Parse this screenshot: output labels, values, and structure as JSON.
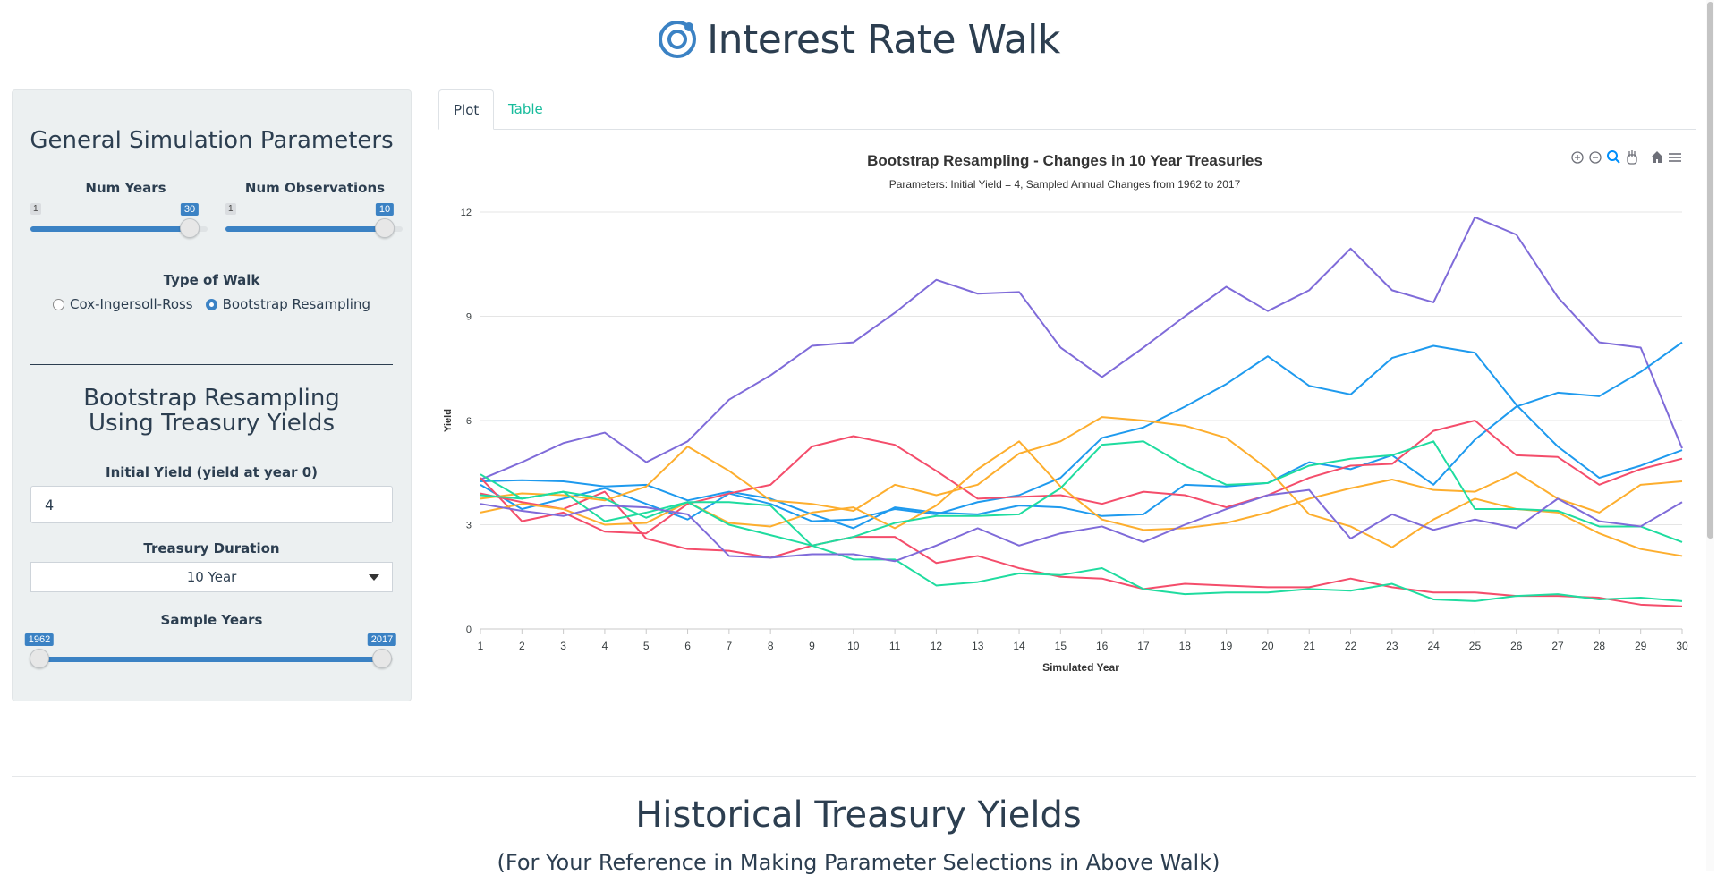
{
  "header": {
    "title": "Interest Rate Walk",
    "logo_icon": "ionic-logo-icon"
  },
  "sidebar": {
    "general_title": "General Simulation Parameters",
    "num_years": {
      "label": "Num Years",
      "min": "1",
      "max": "30",
      "value": "30"
    },
    "num_observations": {
      "label": "Num Observations",
      "min": "1",
      "max": "10",
      "value": "10"
    },
    "walk_type": {
      "label": "Type of Walk",
      "options": [
        "Cox-Ingersoll-Ross",
        "Bootstrap Resampling"
      ],
      "selected": "Bootstrap Resampling"
    },
    "bootstrap_title": "Bootstrap Resampling Using Treasury Yields",
    "initial_yield": {
      "label": "Initial Yield (yield at year 0)",
      "value": "4"
    },
    "treasury_duration": {
      "label": "Treasury Duration",
      "value": "10 Year"
    },
    "sample_years": {
      "label": "Sample Years",
      "min": "1962",
      "max": "2017"
    }
  },
  "tabs": [
    {
      "label": "Plot",
      "active": true
    },
    {
      "label": "Table",
      "active": false
    }
  ],
  "toolbar_icons": [
    "zoom-in-icon",
    "zoom-out-icon",
    "magnifier-icon",
    "pan-icon",
    "home-icon",
    "menu-icon"
  ],
  "chart_data": {
    "type": "line",
    "title": "Bootstrap Resampling - Changes in 10 Year Treasuries",
    "subtitle": "Parameters: Initial Yield = 4, Sampled Annual Changes from 1962 to 2017",
    "xlabel": "Simulated Year",
    "ylabel": "Yield",
    "x": [
      1,
      2,
      3,
      4,
      5,
      6,
      7,
      8,
      9,
      10,
      11,
      12,
      13,
      14,
      15,
      16,
      17,
      18,
      19,
      20,
      21,
      22,
      23,
      24,
      25,
      26,
      27,
      28,
      29,
      30
    ],
    "ylim": [
      0,
      12
    ],
    "yticks": [
      0,
      3,
      6,
      9,
      12
    ],
    "grid": true,
    "legend": "none",
    "series": [
      {
        "color": "#7f6bd9",
        "values": [
          4.3,
          4.8,
          5.35,
          5.65,
          4.8,
          5.4,
          6.6,
          7.3,
          8.15,
          8.25,
          9.1,
          10.05,
          9.65,
          9.7,
          8.1,
          7.25,
          8.1,
          9.0,
          9.85,
          9.15,
          9.75,
          10.95,
          9.75,
          9.4,
          11.85,
          11.35,
          9.55,
          8.25,
          8.1,
          5.2
        ]
      },
      {
        "color": "#1e9aee",
        "values": [
          4.15,
          3.45,
          3.75,
          4.05,
          3.6,
          3.15,
          3.9,
          3.6,
          3.1,
          3.15,
          3.45,
          3.3,
          3.65,
          3.85,
          4.35,
          5.5,
          5.8,
          6.4,
          7.05,
          7.85,
          7.0,
          6.75,
          7.8,
          8.15,
          7.95,
          6.45,
          5.25,
          4.35,
          4.7,
          5.15
        ]
      },
      {
        "color": "#1e9aee",
        "values": [
          4.25,
          4.28,
          4.25,
          4.1,
          4.15,
          3.7,
          3.95,
          3.75,
          3.3,
          2.9,
          3.5,
          3.35,
          3.3,
          3.55,
          3.5,
          3.25,
          3.3,
          4.15,
          4.1,
          4.2,
          4.8,
          4.6,
          5.0,
          4.15,
          5.45,
          6.4,
          6.8,
          6.7,
          7.4,
          8.25
        ]
      },
      {
        "color": "#f44d6b",
        "values": [
          4.35,
          3.1,
          3.35,
          2.8,
          2.75,
          3.6,
          3.9,
          4.15,
          5.25,
          5.55,
          5.3,
          4.55,
          3.75,
          3.8,
          3.85,
          3.6,
          3.95,
          3.85,
          3.5,
          3.85,
          4.35,
          4.7,
          4.75,
          5.7,
          6.0,
          5.0,
          4.95,
          4.15,
          4.6,
          4.9
        ]
      },
      {
        "color": "#f44d6b",
        "values": [
          3.9,
          3.65,
          3.45,
          3.95,
          2.6,
          2.3,
          2.25,
          2.05,
          2.4,
          2.65,
          2.65,
          1.9,
          2.1,
          1.75,
          1.5,
          1.45,
          1.15,
          1.3,
          1.25,
          1.2,
          1.2,
          1.45,
          1.2,
          1.05,
          1.05,
          0.95,
          0.95,
          0.9,
          0.7,
          0.65
        ]
      },
      {
        "color": "#fdae2e",
        "values": [
          3.35,
          3.6,
          3.45,
          3.0,
          3.05,
          3.65,
          3.05,
          2.95,
          3.35,
          3.5,
          2.9,
          3.55,
          4.6,
          5.4,
          4.1,
          3.15,
          2.85,
          2.9,
          3.05,
          3.35,
          3.75,
          4.05,
          4.3,
          4.0,
          3.95,
          4.5,
          3.75,
          3.35,
          4.15,
          4.25
        ]
      },
      {
        "color": "#fdae2e",
        "values": [
          3.75,
          3.9,
          3.85,
          3.7,
          4.1,
          5.25,
          4.55,
          3.7,
          3.6,
          3.4,
          4.15,
          3.85,
          4.15,
          5.05,
          5.4,
          6.1,
          6.0,
          5.85,
          5.5,
          4.6,
          3.3,
          2.95,
          2.35,
          3.15,
          3.75,
          3.45,
          3.35,
          2.75,
          2.3,
          2.1
        ]
      },
      {
        "color": "#1fdc9f",
        "values": [
          4.45,
          3.75,
          3.95,
          3.75,
          3.2,
          3.65,
          3.0,
          2.7,
          2.4,
          2.0,
          2.0,
          1.25,
          1.35,
          1.6,
          1.55,
          1.75,
          1.15,
          1.0,
          1.05,
          1.05,
          1.15,
          1.1,
          1.3,
          0.85,
          0.8,
          0.95,
          1.0,
          0.85,
          0.9,
          0.8
        ]
      },
      {
        "color": "#1fdc9f",
        "values": [
          3.85,
          3.75,
          3.95,
          3.1,
          3.35,
          3.65,
          3.65,
          3.55,
          2.4,
          2.65,
          3.05,
          3.25,
          3.25,
          3.3,
          4.05,
          5.3,
          5.4,
          4.7,
          4.15,
          4.2,
          4.7,
          4.9,
          5.0,
          5.4,
          3.45,
          3.45,
          3.4,
          2.95,
          2.95,
          2.5
        ]
      },
      {
        "color": "#7f6bd9",
        "values": [
          3.6,
          3.4,
          3.25,
          3.55,
          3.5,
          3.3,
          2.1,
          2.05,
          2.15,
          2.15,
          1.95,
          2.4,
          2.9,
          2.4,
          2.75,
          2.95,
          2.5,
          3.0,
          3.45,
          3.85,
          4.0,
          2.6,
          3.3,
          2.85,
          3.15,
          2.9,
          3.75,
          3.1,
          2.95,
          3.65
        ]
      }
    ]
  },
  "historical": {
    "title": "Historical Treasury Yields",
    "subtitle": "(For Your Reference in Making Parameter Selections in Above Walk)"
  }
}
